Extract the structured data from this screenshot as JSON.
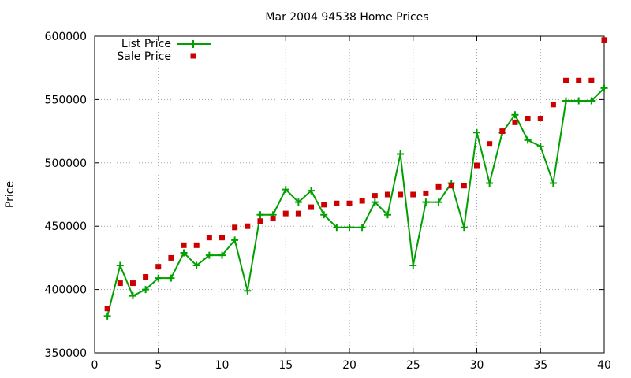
{
  "chart_data": {
    "type": "line",
    "title": "Mar 2004 94538 Home Prices",
    "xlabel": "",
    "ylabel": "Price",
    "xlim": [
      0,
      40
    ],
    "ylim": [
      350000,
      600000
    ],
    "x_ticks": [
      0,
      5,
      10,
      15,
      20,
      25,
      30,
      35,
      40
    ],
    "y_ticks": [
      350000,
      400000,
      450000,
      500000,
      550000,
      600000
    ],
    "grid": true,
    "legend_position": "top-left",
    "x": [
      1,
      2,
      3,
      4,
      5,
      6,
      7,
      8,
      9,
      10,
      11,
      12,
      13,
      14,
      15,
      16,
      17,
      18,
      19,
      20,
      21,
      22,
      23,
      24,
      25,
      26,
      27,
      28,
      29,
      30,
      31,
      32,
      33,
      34,
      35,
      36,
      37,
      38,
      39,
      40
    ],
    "series": [
      {
        "name": "List Price",
        "style": "linespoints",
        "color": "#00a000",
        "values": [
          379000,
          419000,
          395000,
          400000,
          409000,
          409000,
          429000,
          419000,
          427000,
          427000,
          439000,
          399000,
          459000,
          459000,
          479000,
          469000,
          478000,
          459000,
          449000,
          449000,
          449000,
          469000,
          459000,
          507000,
          419000,
          469000,
          469000,
          484000,
          449000,
          524000,
          484000,
          524000,
          538000,
          518000,
          513000,
          484000,
          549000,
          549000,
          549000,
          559000
        ]
      },
      {
        "name": "Sale Price",
        "style": "points",
        "color": "#cc0000",
        "values": [
          385000,
          405000,
          405000,
          410000,
          418000,
          425000,
          435000,
          435000,
          441000,
          441000,
          449000,
          450000,
          454000,
          456000,
          460000,
          460000,
          465000,
          467000,
          468000,
          468000,
          470000,
          474000,
          475000,
          475000,
          475000,
          476000,
          481000,
          482000,
          482000,
          498000,
          515000,
          525000,
          532000,
          535000,
          535000,
          546000,
          565000,
          565000,
          565000,
          597000
        ]
      }
    ]
  }
}
